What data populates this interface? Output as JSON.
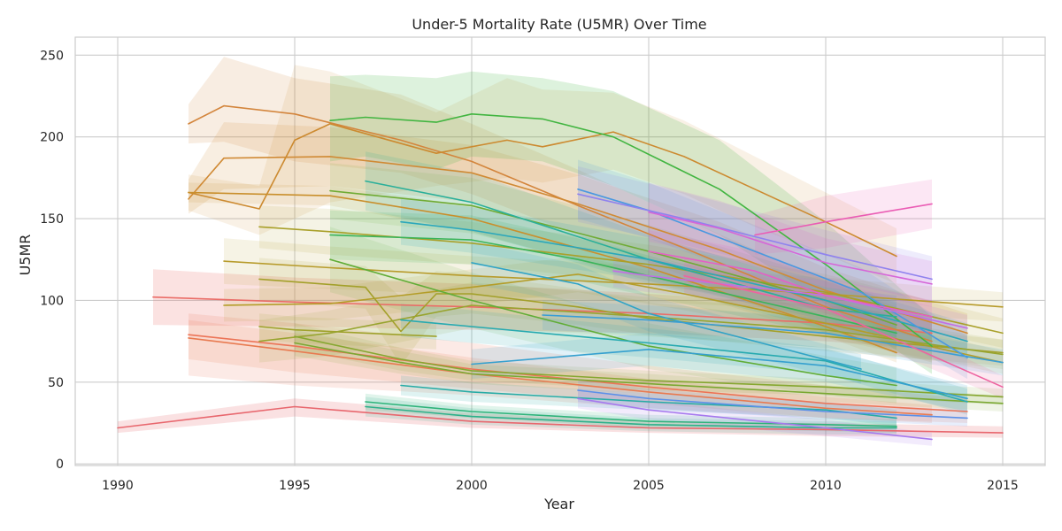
{
  "chart_data": {
    "type": "line",
    "title": "Under-5 Mortality Rate (U5MR) Over Time",
    "xlabel": "Year",
    "ylabel": "U5MR",
    "xlim": [
      1988.8,
      2016.2
    ],
    "ylim": [
      -1,
      261
    ],
    "x_ticks": [
      1990,
      1995,
      2000,
      2005,
      2010,
      2015
    ],
    "y_ticks": [
      0,
      50,
      100,
      150,
      200,
      250
    ],
    "grid": true,
    "legend": "none",
    "series": [
      {
        "color": "#e8676e",
        "band_opacity": 0.2,
        "x": [
          1990,
          1995,
          2000,
          2005,
          2010,
          2015
        ],
        "y": [
          22,
          35,
          26,
          22,
          21,
          19
        ],
        "lo": [
          19,
          29,
          22,
          19,
          17,
          16
        ],
        "hi": [
          26,
          40,
          31,
          26,
          25,
          23
        ]
      },
      {
        "color": "#ea6c67",
        "band_opacity": 0.2,
        "x": [
          1991,
          1995,
          2000,
          2005,
          2010,
          2013
        ],
        "y": [
          102,
          99,
          96,
          92,
          86,
          80
        ],
        "lo": [
          85,
          84,
          82,
          80,
          75,
          70
        ],
        "hi": [
          119,
          114,
          110,
          104,
          97,
          90
        ]
      },
      {
        "color": "#ec7457",
        "band_opacity": 0.15,
        "x": [
          1992,
          1995,
          2000,
          2005,
          2010,
          2014
        ],
        "y": [
          79,
          72,
          58,
          47,
          37,
          32
        ],
        "lo": [
          54,
          48,
          42,
          34,
          28,
          25
        ],
        "hi": [
          92,
          86,
          74,
          60,
          48,
          40
        ]
      },
      {
        "color": "#e87a50",
        "band_opacity": 0.15,
        "x": [
          1992,
          1995,
          2000,
          2005,
          2010,
          2013
        ],
        "y": [
          77,
          69,
          55,
          44,
          34,
          30
        ],
        "lo": [
          64,
          56,
          46,
          37,
          28,
          25
        ],
        "hi": [
          88,
          80,
          65,
          52,
          41,
          36
        ]
      },
      {
        "color": "#d3853c",
        "band_opacity": 0.15,
        "x": [
          1992,
          1993,
          1995,
          1998,
          2000,
          2003,
          2006,
          2010,
          2013
        ],
        "y": [
          208,
          219,
          214,
          198,
          185,
          158,
          132,
          96,
          75
        ],
        "lo": [
          196,
          197,
          185,
          178,
          165,
          140,
          115,
          80,
          62
        ],
        "hi": [
          220,
          249,
          236,
          226,
          208,
          180,
          150,
          112,
          88
        ]
      },
      {
        "color": "#d08a35",
        "band_opacity": 0.15,
        "x": [
          1992,
          1993,
          1996,
          2000,
          2003,
          2007,
          2010,
          2014
        ],
        "y": [
          162,
          187,
          188,
          178,
          159,
          131,
          106,
          80
        ],
        "lo": [
          153,
          168,
          170,
          160,
          141,
          115,
          92,
          69
        ],
        "hi": [
          174,
          209,
          206,
          195,
          177,
          148,
          120,
          92
        ]
      },
      {
        "color": "#cc8a30",
        "band_opacity": 0.12,
        "x": [
          1992,
          1994,
          1995,
          1996,
          1999,
          2001,
          2002,
          2004,
          2006,
          2008,
          2010,
          2012
        ],
        "y": [
          166,
          156,
          198,
          208,
          190,
          198,
          194,
          203,
          188,
          168,
          148,
          127
        ],
        "lo": [
          155,
          140,
          150,
          160,
          170,
          175,
          172,
          180,
          165,
          145,
          128,
          110
        ],
        "hi": [
          177,
          170,
          244,
          240,
          215,
          236,
          229,
          227,
          210,
          188,
          166,
          144
        ]
      },
      {
        "color": "#c98f2c",
        "band_opacity": 0.12,
        "x": [
          1992,
          1996,
          2000,
          2005,
          2010,
          2012
        ],
        "y": [
          166,
          164,
          150,
          120,
          84,
          68
        ],
        "lo": [
          160,
          158,
          142,
          112,
          78,
          62
        ],
        "hi": [
          172,
          170,
          158,
          128,
          90,
          74
        ]
      },
      {
        "color": "#b79b2b",
        "band_opacity": 0.12,
        "x": [
          1993,
          1996,
          2000,
          2005,
          2010,
          2015
        ],
        "y": [
          124,
          120,
          115,
          110,
          104,
          96
        ],
        "lo": [
          110,
          107,
          103,
          99,
          94,
          87
        ],
        "hi": [
          138,
          133,
          127,
          121,
          114,
          105
        ]
      },
      {
        "color": "#b49d28",
        "band_opacity": 0.12,
        "x": [
          1993,
          1996,
          2000,
          2003,
          2006,
          2010,
          2015
        ],
        "y": [
          97,
          98,
          108,
          116,
          104,
          86,
          62
        ],
        "lo": [
          87,
          88,
          97,
          105,
          94,
          77,
          55
        ],
        "hi": [
          107,
          108,
          119,
          127,
          114,
          95,
          69
        ]
      },
      {
        "color": "#a9a02a",
        "band_opacity": 0.12,
        "x": [
          1994,
          1996,
          2000,
          2005,
          2010,
          2015
        ],
        "y": [
          145,
          142,
          135,
          122,
          105,
          80
        ],
        "lo": [
          132,
          128,
          122,
          110,
          94,
          71
        ],
        "hi": [
          158,
          156,
          148,
          134,
          116,
          89
        ]
      },
      {
        "color": "#a3a02a",
        "band_opacity": 0.12,
        "x": [
          1994,
          1997,
          1998,
          1999,
          2000,
          2003,
          2005,
          2010,
          2015
        ],
        "y": [
          113,
          108,
          81,
          104,
          104,
          96,
          89,
          78,
          68
        ],
        "lo": [
          100,
          95,
          60,
          90,
          92,
          85,
          79,
          69,
          60
        ],
        "hi": [
          126,
          121,
          102,
          118,
          116,
          107,
          99,
          87,
          76
        ]
      },
      {
        "color": "#9fa22c",
        "band_opacity": 0.12,
        "x": [
          1994,
          1995,
          1999
        ],
        "y": [
          84,
          82,
          78
        ],
        "lo": [
          76,
          74,
          70
        ],
        "hi": [
          92,
          90,
          86
        ]
      },
      {
        "color": "#98a42f",
        "band_opacity": 0.12,
        "x": [
          1994,
          1996,
          2000,
          2005,
          2010,
          2015
        ],
        "y": [
          75,
          80,
          97,
          90,
          82,
          67
        ],
        "lo": [
          62,
          66,
          83,
          78,
          71,
          58
        ],
        "hi": [
          88,
          94,
          111,
          102,
          93,
          76
        ]
      },
      {
        "color": "#86a730",
        "band_opacity": 0.12,
        "x": [
          1995,
          1998,
          2000,
          2005,
          2010,
          2015
        ],
        "y": [
          78,
          64,
          57,
          51,
          47,
          41
        ],
        "lo": [
          70,
          57,
          51,
          45,
          42,
          36
        ],
        "hi": [
          86,
          71,
          63,
          57,
          52,
          46
        ]
      },
      {
        "color": "#7aa832",
        "band_opacity": 0.12,
        "x": [
          1995,
          1998,
          2000,
          2005,
          2010,
          2015
        ],
        "y": [
          74,
          62,
          55,
          49,
          43,
          37
        ],
        "lo": [
          66,
          55,
          49,
          43,
          38,
          32
        ],
        "hi": [
          82,
          69,
          61,
          55,
          48,
          42
        ]
      },
      {
        "color": "#6fab34",
        "band_opacity": 0.12,
        "x": [
          1996,
          2000,
          2005,
          2010,
          2012
        ],
        "y": [
          167,
          158,
          130,
          100,
          85
        ],
        "lo": [
          150,
          141,
          114,
          86,
          72
        ],
        "hi": [
          184,
          175,
          146,
          114,
          98
        ]
      },
      {
        "color": "#61ad37",
        "band_opacity": 0.12,
        "x": [
          1996,
          2000,
          2005,
          2010,
          2012
        ],
        "y": [
          125,
          100,
          72,
          54,
          48
        ],
        "lo": [
          105,
          83,
          58,
          42,
          37
        ],
        "hi": [
          145,
          117,
          86,
          66,
          59
        ]
      },
      {
        "color": "#42b541",
        "band_opacity": 0.18,
        "x": [
          1996,
          1997,
          1999,
          2000,
          2002,
          2004,
          2007,
          2010,
          2013
        ],
        "y": [
          210,
          212,
          209,
          214,
          211,
          200,
          168,
          122,
          72
        ],
        "lo": [
          185,
          188,
          180,
          188,
          185,
          170,
          140,
          98,
          55
        ],
        "hi": [
          237,
          238,
          236,
          240,
          236,
          228,
          198,
          148,
          90
        ]
      },
      {
        "color": "#3ab45a",
        "band_opacity": 0.15,
        "x": [
          1996,
          2000,
          2003,
          2007,
          2012
        ],
        "y": [
          140,
          137,
          125,
          105,
          80
        ],
        "lo": [
          125,
          122,
          112,
          93,
          70
        ],
        "hi": [
          155,
          152,
          138,
          117,
          90
        ]
      },
      {
        "color": "#2fb37a",
        "band_opacity": 0.15,
        "x": [
          1997,
          2000,
          2005,
          2010,
          2012
        ],
        "y": [
          38,
          32,
          26,
          24,
          23
        ],
        "lo": [
          33,
          28,
          22,
          20,
          19
        ],
        "hi": [
          43,
          36,
          30,
          28,
          27
        ]
      },
      {
        "color": "#2cb18a",
        "band_opacity": 0.15,
        "x": [
          1997,
          2000,
          2005,
          2010,
          2012
        ],
        "y": [
          35,
          29,
          24,
          22,
          22
        ],
        "lo": [
          29,
          24,
          20,
          18,
          18
        ],
        "hi": [
          41,
          34,
          28,
          26,
          26
        ]
      },
      {
        "color": "#2aaf9a",
        "band_opacity": 0.15,
        "x": [
          1997,
          2000,
          2005,
          2010,
          2012
        ],
        "y": [
          173,
          160,
          125,
          95,
          90
        ],
        "lo": [
          155,
          142,
          110,
          82,
          77
        ],
        "hi": [
          191,
          178,
          140,
          108,
          103
        ]
      },
      {
        "color": "#28aca6",
        "band_opacity": 0.15,
        "x": [
          1998,
          2000,
          2005,
          2010,
          2012
        ],
        "y": [
          48,
          44,
          38,
          33,
          28
        ],
        "lo": [
          42,
          38,
          33,
          28,
          23
        ],
        "hi": [
          54,
          50,
          43,
          38,
          33
        ]
      },
      {
        "color": "#27aab0",
        "band_opacity": 0.15,
        "x": [
          1998,
          2000,
          2005,
          2010,
          2014
        ],
        "y": [
          88,
          84,
          74,
          63,
          38
        ],
        "lo": [
          78,
          74,
          65,
          55,
          30
        ],
        "hi": [
          98,
          94,
          83,
          71,
          46
        ]
      },
      {
        "color": "#2aa7bb",
        "band_opacity": 0.15,
        "x": [
          1998,
          2000,
          2005,
          2010,
          2014
        ],
        "y": [
          148,
          143,
          125,
          100,
          75
        ],
        "lo": [
          134,
          129,
          112,
          88,
          64
        ],
        "hi": [
          162,
          157,
          138,
          112,
          86
        ]
      },
      {
        "color": "#2fa3c6",
        "band_opacity": 0.15,
        "x": [
          2000,
          2003,
          2005,
          2008,
          2011
        ],
        "y": [
          123,
          110,
          92,
          75,
          58
        ],
        "lo": [
          110,
          98,
          81,
          65,
          49
        ],
        "hi": [
          136,
          122,
          103,
          85,
          67
        ]
      },
      {
        "color": "#35a0cf",
        "band_opacity": 0.15,
        "x": [
          2000,
          2005,
          2010,
          2014
        ],
        "y": [
          61,
          70,
          60,
          40
        ],
        "lo": [
          52,
          60,
          50,
          32
        ],
        "hi": [
          70,
          80,
          70,
          48
        ]
      },
      {
        "color": "#3a9ed6",
        "band_opacity": 0.15,
        "x": [
          2002,
          2005,
          2010,
          2015
        ],
        "y": [
          91,
          88,
          80,
          62
        ],
        "lo": [
          82,
          79,
          71,
          54
        ],
        "hi": [
          100,
          97,
          89,
          70
        ]
      },
      {
        "color": "#4a98e0",
        "band_opacity": 0.15,
        "x": [
          2003,
          2005,
          2008,
          2011,
          2014
        ],
        "y": [
          168,
          155,
          130,
          105,
          65
        ],
        "lo": [
          150,
          138,
          114,
          90,
          52
        ],
        "hi": [
          186,
          172,
          146,
          120,
          78
        ]
      },
      {
        "color": "#5c90e8",
        "band_opacity": 0.15,
        "x": [
          2003,
          2005,
          2010,
          2014
        ],
        "y": [
          45,
          40,
          32,
          28
        ],
        "lo": [
          38,
          34,
          27,
          23
        ],
        "hi": [
          52,
          46,
          37,
          33
        ]
      },
      {
        "color": "#8f82ee",
        "band_opacity": 0.15,
        "x": [
          2003,
          2006,
          2010,
          2013
        ],
        "y": [
          165,
          150,
          128,
          113
        ],
        "lo": [
          148,
          134,
          113,
          99
        ],
        "hi": [
          182,
          166,
          143,
          127
        ]
      },
      {
        "color": "#a679ee",
        "band_opacity": 0.15,
        "x": [
          2003,
          2005,
          2010,
          2013
        ],
        "y": [
          40,
          33,
          22,
          15
        ],
        "lo": [
          34,
          27,
          17,
          11
        ],
        "hi": [
          46,
          39,
          27,
          19
        ]
      },
      {
        "color": "#c26ee6",
        "band_opacity": 0.15,
        "x": [
          2004,
          2005,
          2010,
          2014
        ],
        "y": [
          118,
          115,
          103,
          83
        ],
        "lo": [
          108,
          105,
          94,
          75
        ],
        "hi": [
          128,
          125,
          112,
          91
        ]
      },
      {
        "color": "#d666d8",
        "band_opacity": 0.15,
        "x": [
          2005,
          2007,
          2010,
          2013
        ],
        "y": [
          154,
          144,
          123,
          110
        ],
        "lo": [
          136,
          127,
          108,
          96
        ],
        "hi": [
          172,
          161,
          138,
          124
        ]
      },
      {
        "color": "#e45fc6",
        "band_opacity": 0.15,
        "x": [
          2005,
          2008,
          2010,
          2013
        ],
        "y": [
          130,
          118,
          103,
          90
        ],
        "lo": [
          117,
          106,
          92,
          80
        ],
        "hi": [
          143,
          130,
          114,
          100
        ]
      },
      {
        "color": "#ea5cb4",
        "band_opacity": 0.15,
        "x": [
          2008,
          2010,
          2013
        ],
        "y": [
          140,
          148,
          159
        ],
        "lo": [
          128,
          132,
          144
        ],
        "hi": [
          152,
          164,
          174
        ]
      },
      {
        "color": "#ee63a0",
        "band_opacity": 0.15,
        "x": [
          2006,
          2010,
          2015
        ],
        "y": [
          115,
          95,
          47
        ],
        "lo": [
          104,
          85,
          40
        ],
        "hi": [
          126,
          105,
          54
        ]
      }
    ]
  }
}
